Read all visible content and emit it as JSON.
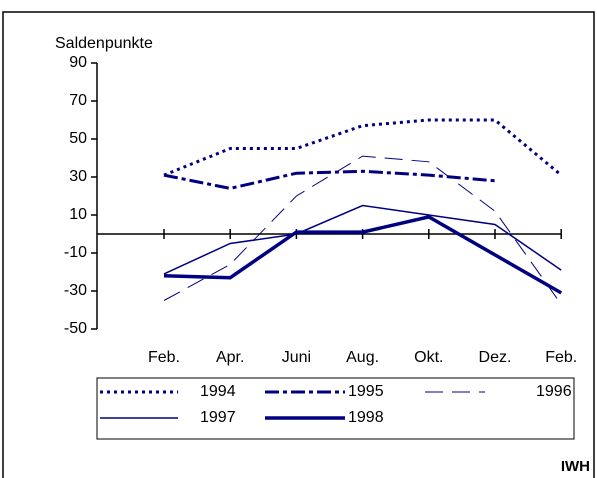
{
  "chart_data": {
    "type": "line",
    "y_label": "Saldenpunkte",
    "source": "IWH",
    "categories": [
      "Feb.",
      "Apr.",
      "Juni",
      "Aug.",
      "Okt.",
      "Dez.",
      "Feb."
    ],
    "ylim": [
      -50,
      90
    ],
    "yticks": [
      90,
      70,
      50,
      30,
      10,
      -10,
      -30,
      -50
    ],
    "series": [
      {
        "name": "1994",
        "color": "#000080",
        "dash": "dotted",
        "width": 3,
        "values": [
          31,
          45,
          45,
          57,
          60,
          60,
          31
        ]
      },
      {
        "name": "1995",
        "color": "#000080",
        "dash": "dashdot",
        "width": 3,
        "values": [
          31,
          24,
          32,
          33,
          31,
          28,
          null
        ]
      },
      {
        "name": "1996",
        "color": "#000080",
        "dash": "longdash",
        "width": 1,
        "values": [
          -35,
          -16,
          20,
          41,
          38,
          12,
          -37
        ]
      },
      {
        "name": "1997",
        "color": "#000080",
        "dash": "solid",
        "width": 1.5,
        "values": [
          -21,
          -5,
          0,
          15,
          10,
          5,
          -19
        ]
      },
      {
        "name": "1998",
        "color": "#000080",
        "dash": "solid",
        "width": 3.5,
        "values": [
          -22,
          -23,
          1,
          1,
          9,
          -11,
          -31
        ]
      }
    ]
  }
}
